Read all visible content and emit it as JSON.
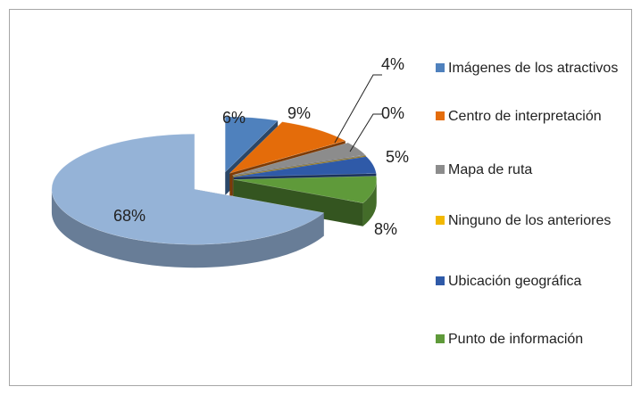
{
  "chart_data": {
    "type": "pie",
    "categories": [
      "Imágenes de los atractivos",
      "Centro de interpretación",
      "Mapa de ruta",
      "Ninguno de los anteriores",
      "Ubicación geográfica",
      "Punto de información",
      null
    ],
    "values": [
      6,
      9,
      4,
      0,
      5,
      8,
      68
    ],
    "value_labels": [
      "6%",
      "9%",
      "4%",
      "0%",
      "5%",
      "8%",
      "68%"
    ],
    "colors": [
      "#4f81bd",
      "#e46c0a",
      "#8c8c8c",
      "#f2b800",
      "#2f5aa8",
      "#5f9a3a",
      "#95b3d7"
    ],
    "legend": "right"
  }
}
